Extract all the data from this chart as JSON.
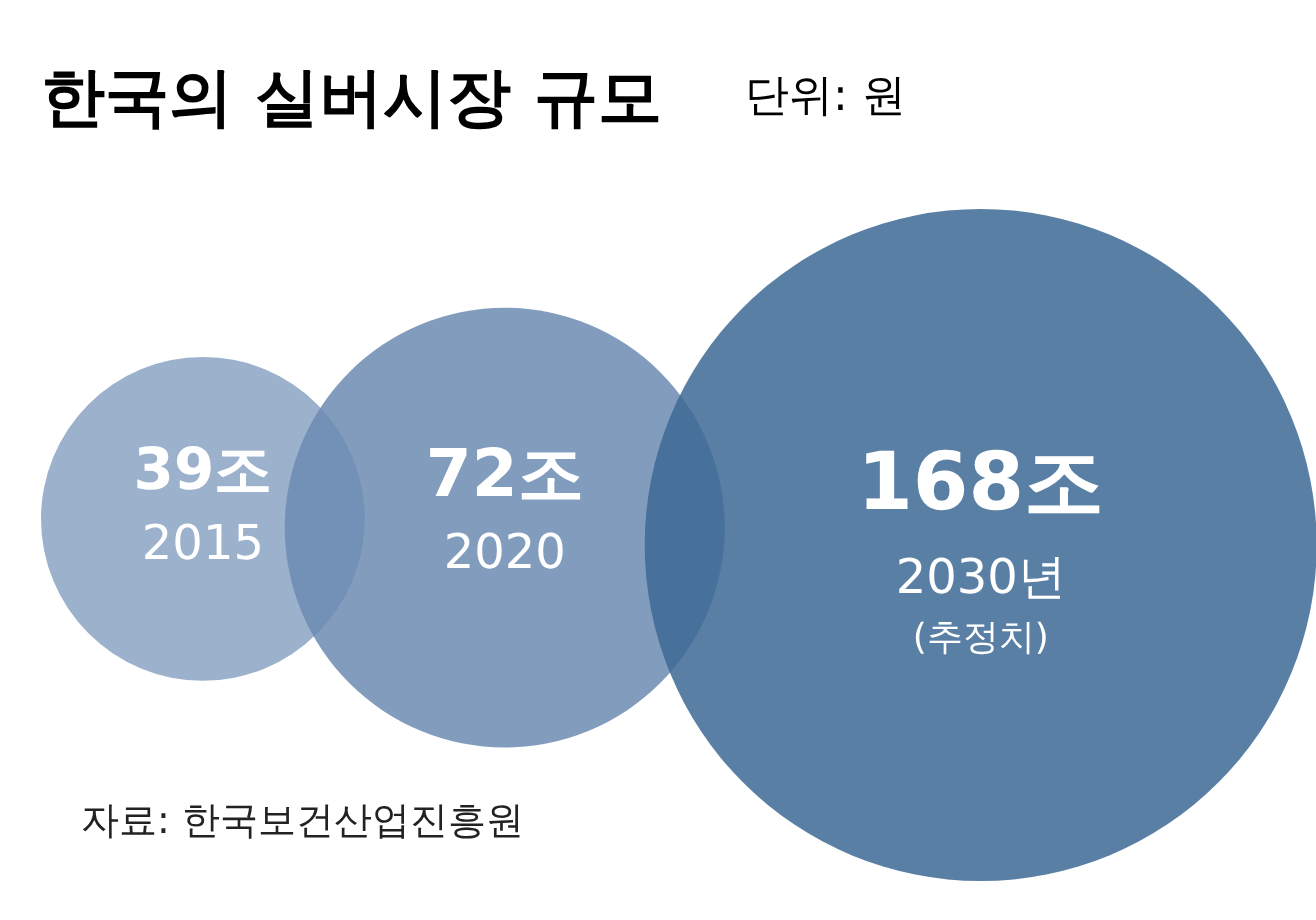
{
  "chart_data": {
    "type": "other",
    "title": "한국의 실버시장 규모",
    "subtitle": "단위: 원",
    "categories": [
      "2015",
      "2020",
      "2030년"
    ],
    "values": [
      39,
      72,
      168
    ],
    "value_labels": [
      "39조",
      "72조",
      "168조"
    ],
    "colors": [
      "#8aa3c3",
      "#6c8bb2",
      "#3d6994"
    ],
    "annotations": [
      {
        "text": "(추정치)",
        "x": "2030년"
      },
      "자료: 한국보건산업진흥원"
    ]
  }
}
